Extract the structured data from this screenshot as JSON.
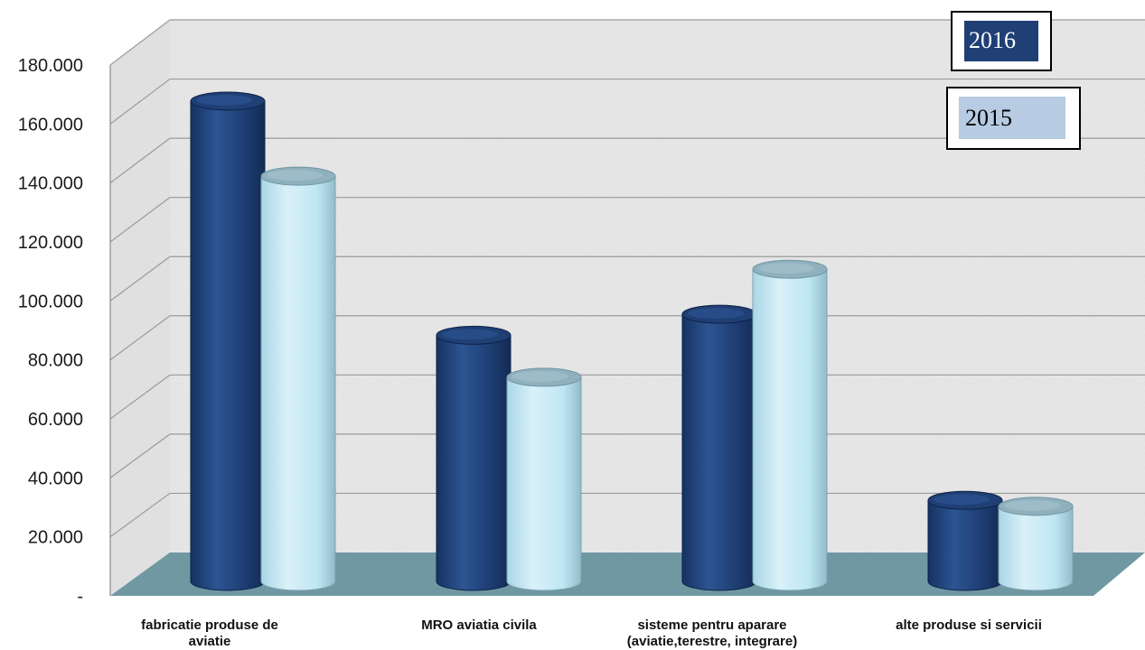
{
  "chart_data": {
    "type": "bar",
    "categories": [
      [
        "fabricatie produse de",
        "aviatie"
      ],
      [
        "MRO aviatia civila"
      ],
      [
        "sisteme pentru  aparare",
        "(aviatie,terestre,  integrare)"
      ],
      [
        "alte produse si servicii"
      ]
    ],
    "series": [
      {
        "name": "2016",
        "values": [
          160000,
          82000,
          89000,
          27000
        ]
      },
      {
        "name": "2015",
        "values": [
          135000,
          68000,
          104000,
          25000
        ]
      }
    ],
    "ylim": [
      0,
      180000
    ],
    "yticks": [
      "-",
      "20.000",
      "40.000",
      "60.000",
      "80.000",
      "100.000",
      "120.000",
      "140.000",
      "160.000",
      "180.000"
    ],
    "ytick_values": [
      0,
      20000,
      40000,
      60000,
      80000,
      100000,
      120000,
      140000,
      160000,
      180000
    ],
    "grid": true,
    "legend_placement": "top-right",
    "colors": {
      "series_2016": "#1f3f75",
      "series_2016_light": "#3a5f9a",
      "series_2015": "#bfe6f3",
      "series_2015_top": "#8fb0bd",
      "legend_2016": "#1f3f75",
      "legend_2015": "#b7cbe3",
      "floor": "#6f98a3",
      "wall": "#ececec",
      "grid": "#9a9a9a"
    }
  }
}
